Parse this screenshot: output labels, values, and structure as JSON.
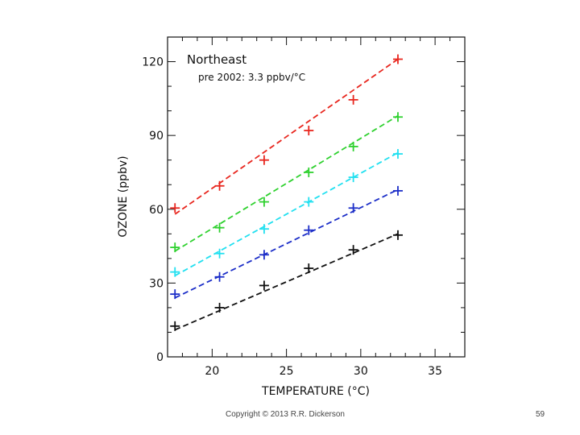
{
  "chart_data": {
    "type": "line",
    "title": "Northeast",
    "subtitle": "pre 2002: 3.3 ppbv/°C",
    "xlabel": "TEMPERATURE (°C)",
    "ylabel": "OZONE (ppbv)",
    "xlim": [
      17,
      37
    ],
    "ylim": [
      0,
      130
    ],
    "xticks": [
      20,
      25,
      30,
      35
    ],
    "yticks": [
      0,
      30,
      60,
      90,
      120
    ],
    "grid": false,
    "x": [
      17.5,
      20.5,
      23.5,
      26.5,
      29.5,
      32.5
    ],
    "series": [
      {
        "name": "red",
        "color": "#e8261e",
        "points": [
          60.5,
          69.5,
          80,
          92,
          104.5,
          121
        ],
        "fit": [
          58,
          121
        ]
      },
      {
        "name": "green",
        "color": "#2fd12f",
        "points": [
          44.5,
          52.5,
          63,
          75,
          85.5,
          97.5
        ],
        "fit": [
          43,
          98
        ]
      },
      {
        "name": "cyan",
        "color": "#22e0f0",
        "points": [
          34.5,
          42,
          52,
          63,
          73,
          82.5
        ],
        "fit": [
          33,
          83
        ]
      },
      {
        "name": "blue",
        "color": "#1c2ec8",
        "points": [
          25.5,
          32.5,
          41.5,
          51.5,
          60.5,
          67.5
        ],
        "fit": [
          24,
          68
        ]
      },
      {
        "name": "black",
        "color": "#111111",
        "points": [
          12.5,
          20,
          29,
          36,
          43.5,
          49.5
        ],
        "fit": [
          11,
          50
        ]
      }
    ]
  },
  "footer": {
    "copyright": "Copyright © 2013 R.R. Dickerson",
    "slide_number": "59"
  }
}
